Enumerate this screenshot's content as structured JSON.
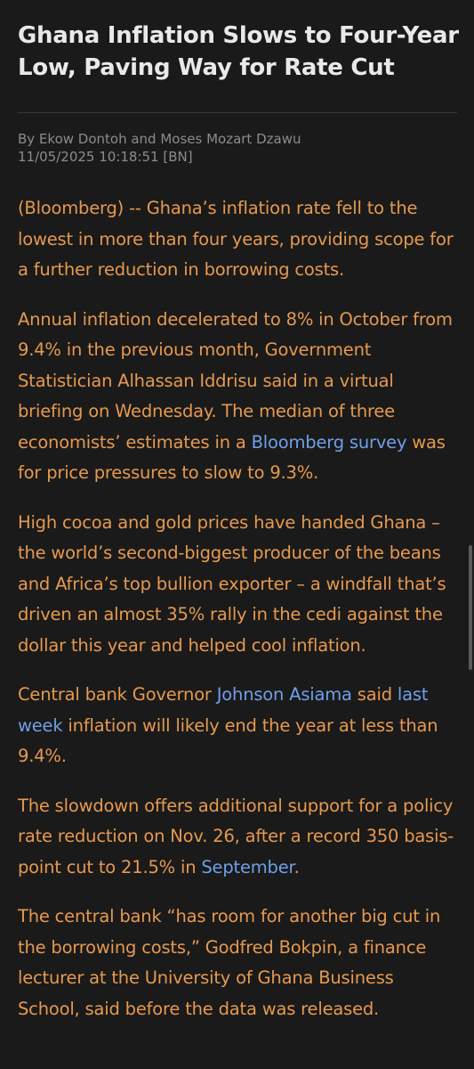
{
  "article": {
    "headline": "Ghana Inflation Slows to Four-Year Low, Paving Way for Rate Cut",
    "byline": "By Ekow Dontoh and Moses Mozart Dzawu",
    "timestamp": "11/05/2025 10:18:51 [BN]",
    "p1": "(Bloomberg) -- Ghana’s inflation rate fell to the lowest in more than four years, providing scope for a further reduction in borrowing costs.",
    "p2_a": "Annual inflation decelerated to 8% in October from 9.4% in the previous month, Government Statistician Alhassan Iddrisu said in a virtual briefing on Wednesday. The median of three economists’ estimates in a ",
    "p2_link": "Bloomberg survey",
    "p2_b": " was for price pressures to slow to 9.3%.",
    "p3": "High cocoa and gold prices have handed Ghana – the world’s second-biggest producer of the beans and Africa’s top bullion exporter – a windfall that’s driven an almost 35% rally in the cedi against the dollar this year and helped cool inflation.",
    "p4_a": "Central bank Governor ",
    "p4_link1": "Johnson Asiama",
    "p4_b": " said ",
    "p4_link2": "last week",
    "p4_c": " inflation will likely end the year at less than 9.4%.",
    "p5_a": "The slowdown offers additional support for a policy rate reduction on Nov. 26, after a record 350 basis-point cut to 21.5% in ",
    "p5_link": "September",
    "p5_b": ".",
    "p6": "The central bank “has room for another big cut in the borrowing costs,” Godfred Bokpin, a finance lecturer at the University of Ghana Business School, said before the data was released."
  },
  "colors": {
    "background": "#1a1a1a",
    "headline": "#e9e9e9",
    "body_text": "#e6994f",
    "link": "#6f9fe8",
    "meta": "#8c8c8c"
  }
}
